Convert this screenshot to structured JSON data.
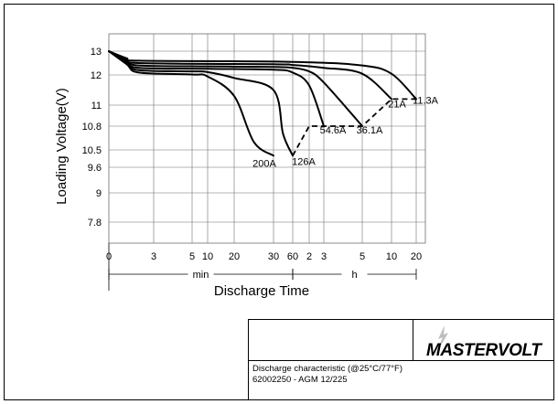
{
  "chart_data": {
    "type": "line",
    "title": "",
    "ylabel": "Loading  Voltage(V)",
    "xlabel": "Discharge Time",
    "y_ticks": [
      "13",
      "12",
      "11",
      "10.8",
      "10.5",
      "9.6",
      "9",
      "7.8"
    ],
    "y_tick_values": [
      13,
      12,
      11,
      10.8,
      10.5,
      9.6,
      9,
      7.8
    ],
    "x_ticks": [
      "0",
      "3",
      "5",
      "10",
      "20",
      "30",
      "60",
      "2",
      "3",
      "5",
      "10",
      "20"
    ],
    "x_tick_minutes": [
      0,
      3,
      5,
      10,
      20,
      30,
      60,
      120,
      180,
      300,
      600,
      1200
    ],
    "x_units": [
      {
        "label": "min",
        "from_minutes": 0,
        "to_minutes": 60
      },
      {
        "label": "h",
        "from_minutes": 60,
        "to_minutes": 1200
      }
    ],
    "grid": true,
    "series": [
      {
        "name": "200A",
        "points": [
          [
            0,
            13.0
          ],
          [
            1.2,
            12.45
          ],
          [
            2,
            12.1
          ],
          [
            5,
            12.02
          ],
          [
            10,
            11.95
          ],
          [
            20,
            11.3
          ],
          [
            25,
            10.6
          ],
          [
            30,
            10.2
          ]
        ]
      },
      {
        "name": "126A",
        "points": [
          [
            0,
            13.0
          ],
          [
            1.2,
            12.5
          ],
          [
            2,
            12.2
          ],
          [
            5,
            12.15
          ],
          [
            10,
            12.12
          ],
          [
            20,
            11.9
          ],
          [
            30,
            11.5
          ],
          [
            45,
            10.7
          ],
          [
            60,
            10.2
          ]
        ]
      },
      {
        "name": "54.6A",
        "points": [
          [
            0,
            13.0
          ],
          [
            1.2,
            12.55
          ],
          [
            2,
            12.3
          ],
          [
            10,
            12.26
          ],
          [
            30,
            12.22
          ],
          [
            60,
            12.1
          ],
          [
            120,
            11.65
          ],
          [
            180,
            10.8
          ]
        ]
      },
      {
        "name": "36.1A",
        "points": [
          [
            0,
            13.0
          ],
          [
            1.2,
            12.6
          ],
          [
            2,
            12.4
          ],
          [
            10,
            12.36
          ],
          [
            30,
            12.34
          ],
          [
            60,
            12.3
          ],
          [
            120,
            12.15
          ],
          [
            180,
            11.75
          ],
          [
            300,
            10.8
          ]
        ]
      },
      {
        "name": "21A",
        "points": [
          [
            0,
            13.0
          ],
          [
            1.2,
            12.65
          ],
          [
            2,
            12.5
          ],
          [
            30,
            12.45
          ],
          [
            60,
            12.42
          ],
          [
            180,
            12.3
          ],
          [
            300,
            12.05
          ],
          [
            600,
            11.2
          ]
        ]
      },
      {
        "name": "11.3A",
        "points": [
          [
            0,
            13.0
          ],
          [
            1.2,
            12.7
          ],
          [
            2,
            12.6
          ],
          [
            60,
            12.55
          ],
          [
            300,
            12.4
          ],
          [
            600,
            12.05
          ],
          [
            1200,
            11.2
          ]
        ]
      }
    ],
    "end_voltage_line": {
      "style": "dashed",
      "points": [
        [
          60,
          10.2
        ],
        [
          120,
          10.8
        ],
        [
          300,
          10.8
        ],
        [
          600,
          11.2
        ],
        [
          1200,
          11.2
        ]
      ]
    }
  },
  "footer": {
    "brand": "MASTERVOLT",
    "caption_line1": "Discharge characteristic (@25°C/77°F)",
    "caption_line2": "62002250 - AGM 12/225"
  },
  "colors": {
    "ink": "#000000",
    "grid": "#6e6e6e",
    "background": "#ffffff"
  }
}
